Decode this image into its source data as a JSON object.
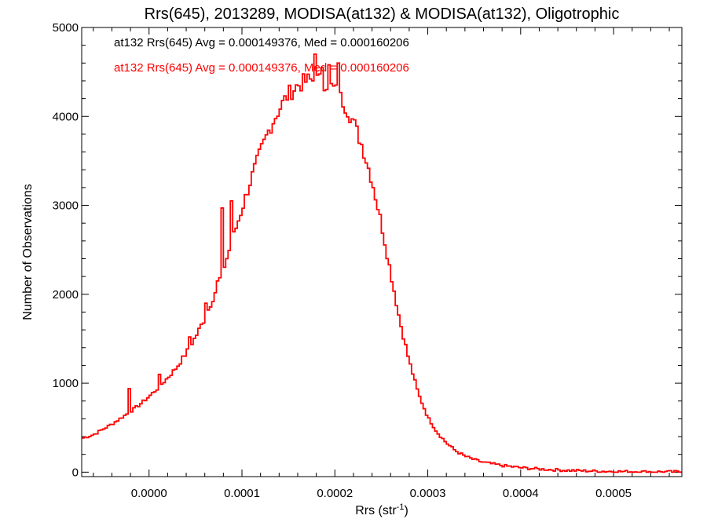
{
  "chart_data": {
    "type": "line",
    "title": "Rrs(645), 2013289, MODISA(at132) & MODISA(at132), Oligotrophic",
    "xlabel": "Rrs (str",
    "xlabel_sup": "-1",
    "xlabel_end": ")",
    "ylabel": "Number of Observations",
    "xlim": [
      -7.25e-05,
      0.0005735
    ],
    "ylim": [
      -50,
      5000
    ],
    "x_ticks": [
      0.0,
      0.0001,
      0.0002,
      0.0003,
      0.0004,
      0.0005
    ],
    "x_tick_labels": [
      "0.0000",
      "0.0001",
      "0.0002",
      "0.0003",
      "0.0004",
      "0.0005"
    ],
    "y_ticks": [
      0,
      1000,
      2000,
      3000,
      4000,
      5000
    ],
    "y_tick_labels": [
      "0",
      "1000",
      "2000",
      "3000",
      "4000",
      "5000"
    ],
    "grid": false,
    "annotations": [
      {
        "text": "at132 Rrs(645) Avg = 0.000149376, Med = 0.000160206",
        "color": "#000000"
      },
      {
        "text": "at132 Rrs(645) Avg = 0.000149376, Med = 0.000160206",
        "color": "#ff0000"
      }
    ],
    "series": [
      {
        "color": "#ff0000",
        "x": [
          -7.25e-05,
          -6e-05,
          -5e-05,
          -4e-05,
          -3e-05,
          -2e-05,
          -1e-05,
          0.0,
          1e-05,
          2e-05,
          3e-05,
          4e-05,
          5e-05,
          6e-05,
          7e-05,
          8e-05,
          9e-05,
          0.0001,
          0.00011,
          0.00012,
          0.00013,
          0.00014,
          0.00015,
          0.00016,
          0.00017,
          0.00018,
          0.00019,
          0.0002,
          0.00021,
          0.00022,
          0.00023,
          0.00024,
          0.00025,
          0.00026,
          0.00027,
          0.00028,
          0.00029,
          0.0003,
          0.00031,
          0.00032,
          0.00033,
          0.00034,
          0.00035,
          0.00036,
          0.00038,
          0.0004,
          0.00042,
          0.00045,
          0.00048,
          0.0005,
          0.00053,
          0.0005735
        ],
        "y": [
          380,
          420,
          480,
          540,
          610,
          680,
          760,
          850,
          950,
          1060,
          1180,
          1340,
          1520,
          1730,
          1990,
          2280,
          2620,
          2960,
          3300,
          3600,
          3870,
          4080,
          4250,
          4350,
          4400,
          4410,
          4380,
          4300,
          4150,
          3940,
          3650,
          3280,
          2800,
          2250,
          1700,
          1250,
          880,
          620,
          450,
          330,
          240,
          180,
          140,
          110,
          75,
          50,
          35,
          20,
          12,
          8,
          5,
          3
        ]
      }
    ],
    "spikes": [
      {
        "x": 0.000178,
        "y": 4700
      },
      {
        "x": 0.000203,
        "y": 4600
      },
      {
        "x": 0.000193,
        "y": 4580
      },
      {
        "x": 0.000187,
        "y": 4550
      },
      {
        "x": 8.8e-05,
        "y": 3050
      },
      {
        "x": 8e-05,
        "y": 2970
      },
      {
        "x": 4.5e-05,
        "y": 1520
      },
      {
        "x": 1.2e-05,
        "y": 1100
      },
      {
        "x": -2e-05,
        "y": 940
      },
      {
        "x": 7.5e-05,
        "y": 2150
      },
      {
        "x": 6.1e-05,
        "y": 1900
      }
    ]
  }
}
